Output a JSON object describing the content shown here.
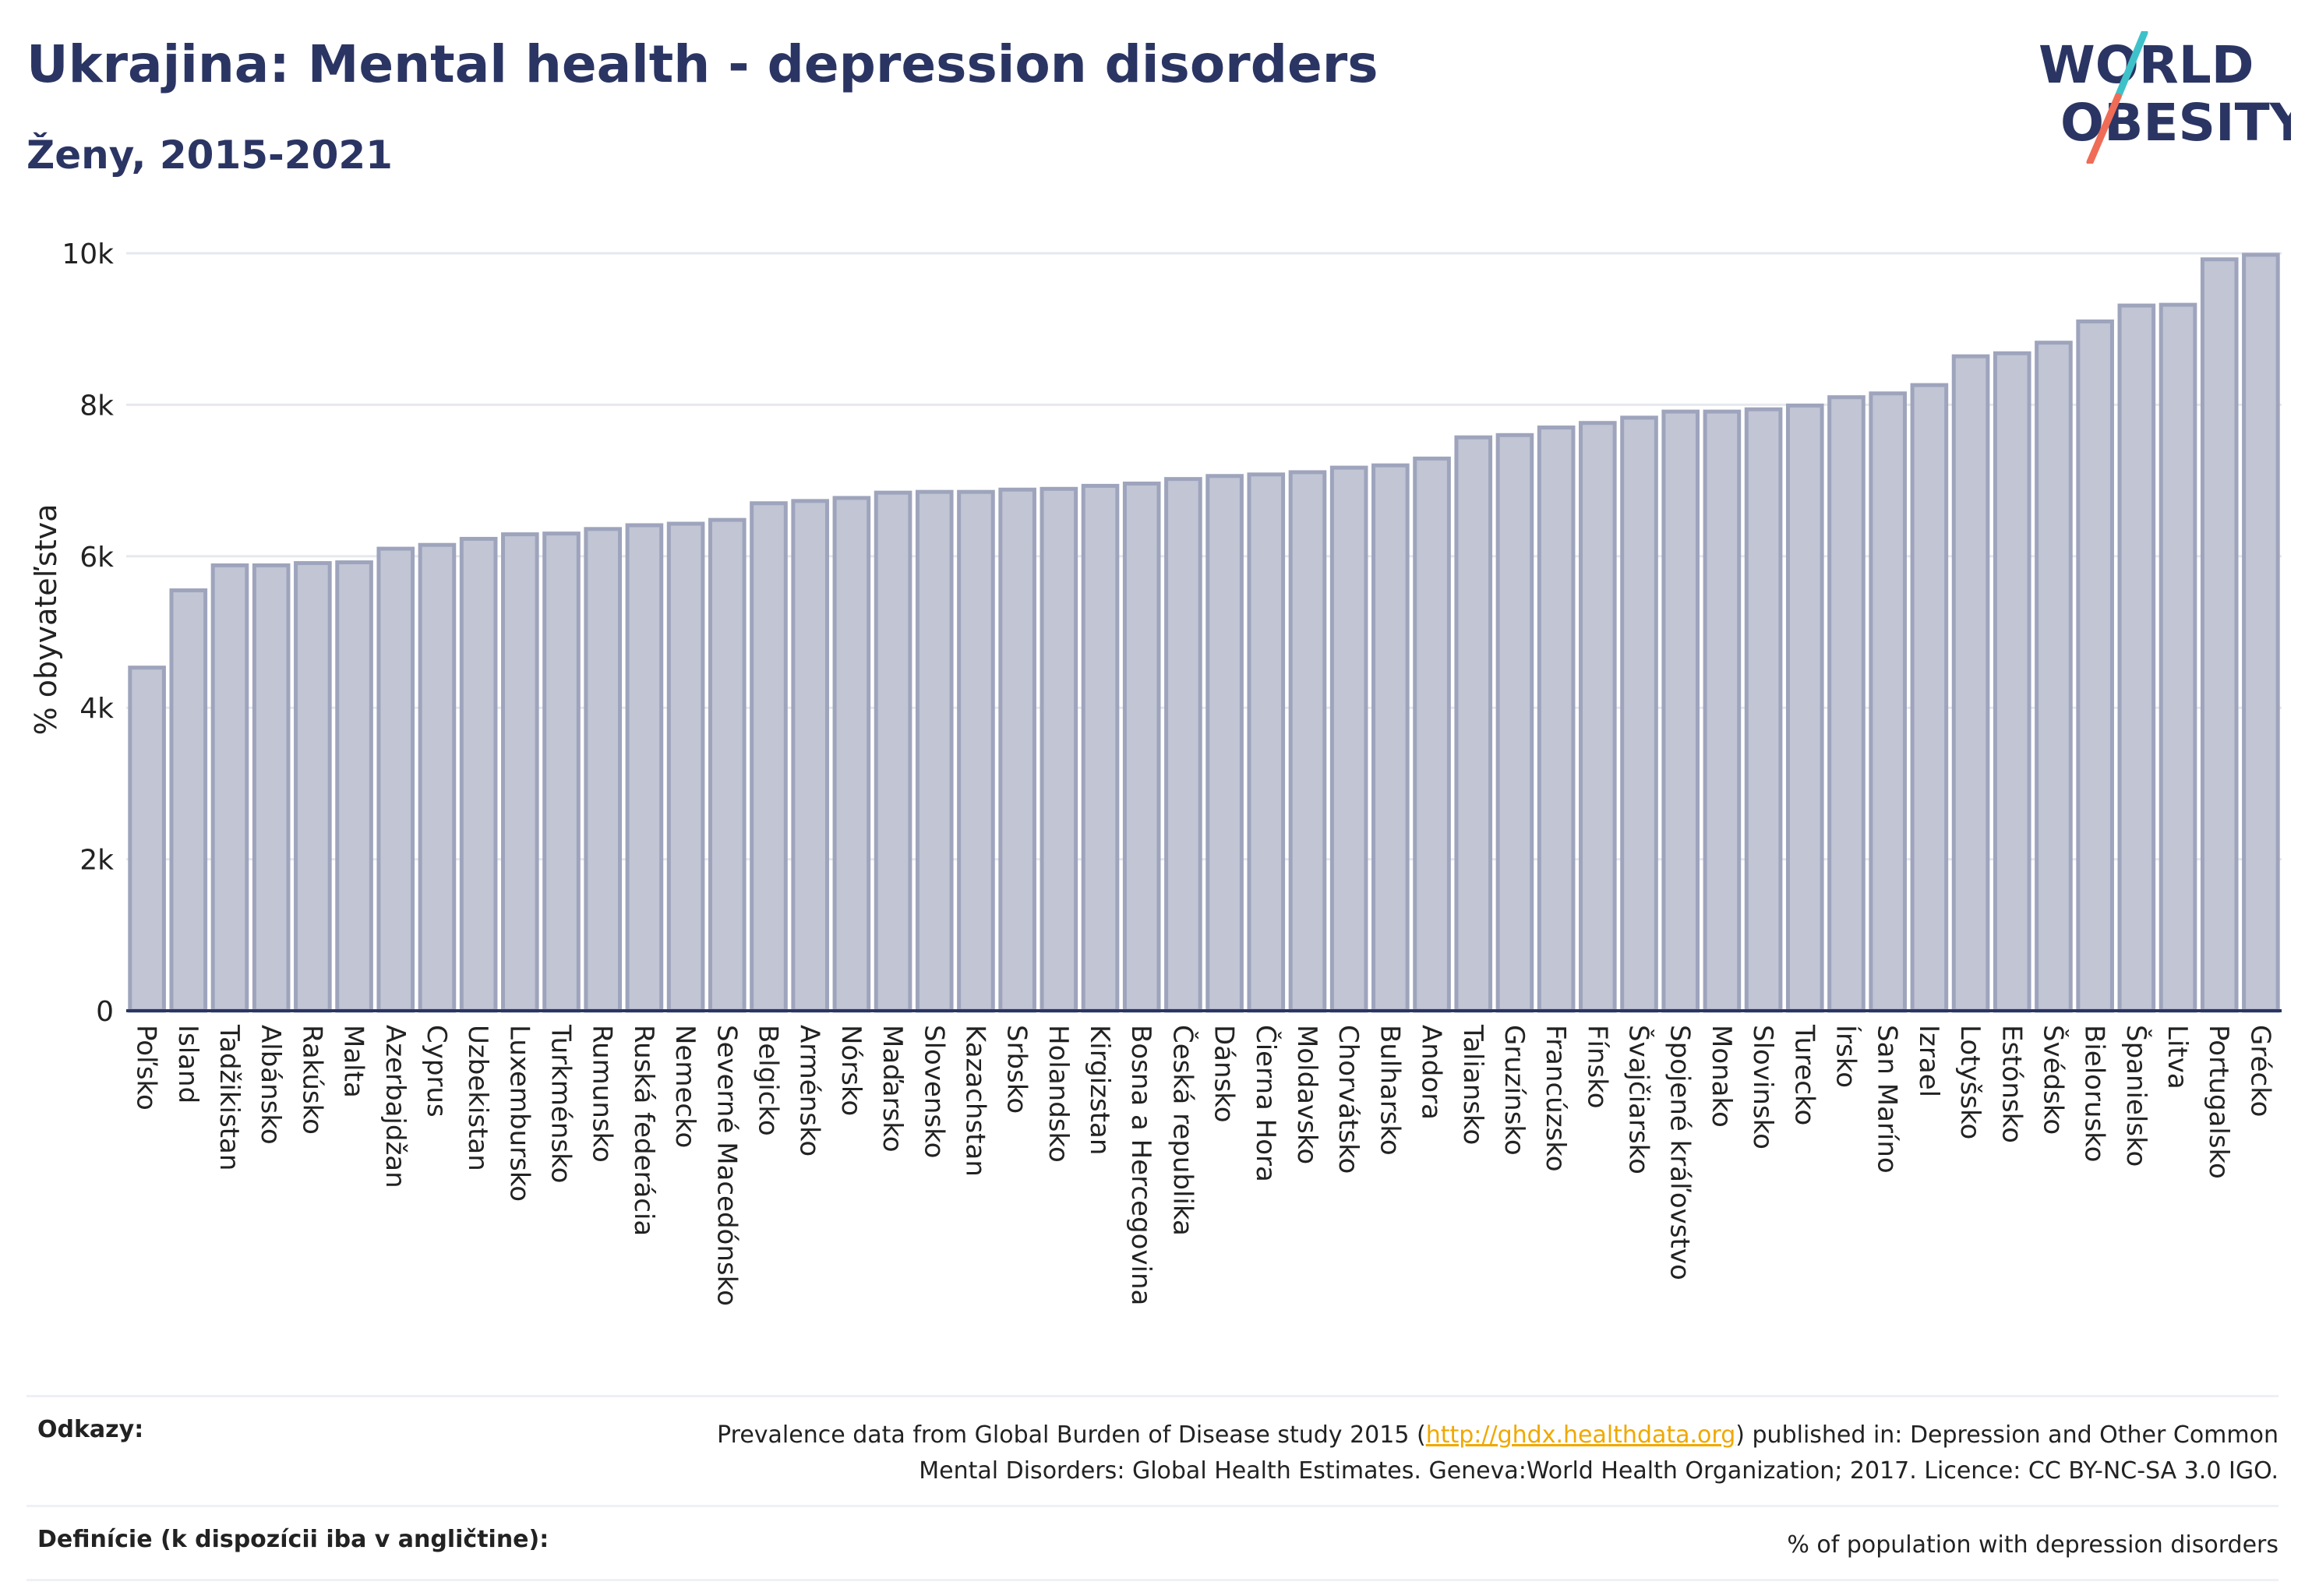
{
  "header": {
    "title": "Ukrajina: Mental health - depression disorders",
    "subtitle": "Ženy, 2015-2021"
  },
  "logo": {
    "line1": "WORLD",
    "line2": "OBESITY"
  },
  "colors": {
    "bar_fill": "#c1c5d4",
    "bar_stroke": "#9ea4bc",
    "axis": "#2b3563",
    "grid": "#e6e8f0",
    "title": "#2b3563",
    "logo_teal": "#3fc1c9",
    "logo_coral": "#ef6c57",
    "link": "#f0a800"
  },
  "chart_data": {
    "type": "bar",
    "ylabel": "% obyvateľstva",
    "ylim": [
      0,
      10000
    ],
    "yticks": [
      0,
      2000,
      4000,
      6000,
      8000,
      10000
    ],
    "ytick_labels": [
      "0",
      "2k",
      "4k",
      "6k",
      "8k",
      "10k"
    ],
    "grid": true,
    "categories": [
      "Poľsko",
      "Island",
      "Tadžikistan",
      "Albánsko",
      "Rakúsko",
      "Malta",
      "Azerbajdžan",
      "Cyprus",
      "Uzbekistan",
      "Luxembursko",
      "Turkménsko",
      "Rumunsko",
      "Ruská federácia",
      "Nemecko",
      "Severné Macedónsko",
      "Belgicko",
      "Arménsko",
      "Nórsko",
      "Maďarsko",
      "Slovensko",
      "Kazachstan",
      "Srbsko",
      "Holandsko",
      "Kirgizstan",
      "Bosna a Hercegovina",
      "Česká republika",
      "Dánsko",
      "Čierna Hora",
      "Moldavsko",
      "Chorvátsko",
      "Bulharsko",
      "Andora",
      "Taliansko",
      "Gruzínsko",
      "Francúzsko",
      "Fínsko",
      "Švajčiarsko",
      "Spojené kráľovstvo",
      "Monako",
      "Slovinsko",
      "Turecko",
      "Írsko",
      "San Maríno",
      "Izrael",
      "Lotyšsko",
      "Estónsko",
      "Švédsko",
      "Bielorusko",
      "Španielsko",
      "Litva",
      "Portugalsko",
      "Grécko"
    ],
    "values": [
      4530,
      5550,
      5880,
      5880,
      5910,
      5920,
      6100,
      6150,
      6230,
      6290,
      6300,
      6360,
      6410,
      6430,
      6480,
      6700,
      6730,
      6770,
      6840,
      6850,
      6850,
      6880,
      6890,
      6930,
      6960,
      7020,
      7060,
      7080,
      7110,
      7170,
      7200,
      7290,
      7570,
      7600,
      7700,
      7760,
      7830,
      7910,
      7910,
      7940,
      7990,
      8100,
      8150,
      8260,
      8640,
      8680,
      8820,
      9100,
      9310,
      9320,
      9920,
      9980
    ]
  },
  "footer": {
    "references_label": "Odkazy:",
    "references_text_before": "Prevalence data from Global Burden of Disease study 2015 (",
    "references_link": "http://ghdx.healthdata.org",
    "references_text_after": ") published in: Depression and Other Common",
    "references_line2": "Mental Disorders: Global Health Estimates. Geneva:World Health Organization; 2017. Licence: CC BY-NC-SA 3.0 IGO.",
    "definitions_label": "Definície (k dispozícii iba v angličtine):",
    "definitions_text": "% of population with depression disorders"
  }
}
